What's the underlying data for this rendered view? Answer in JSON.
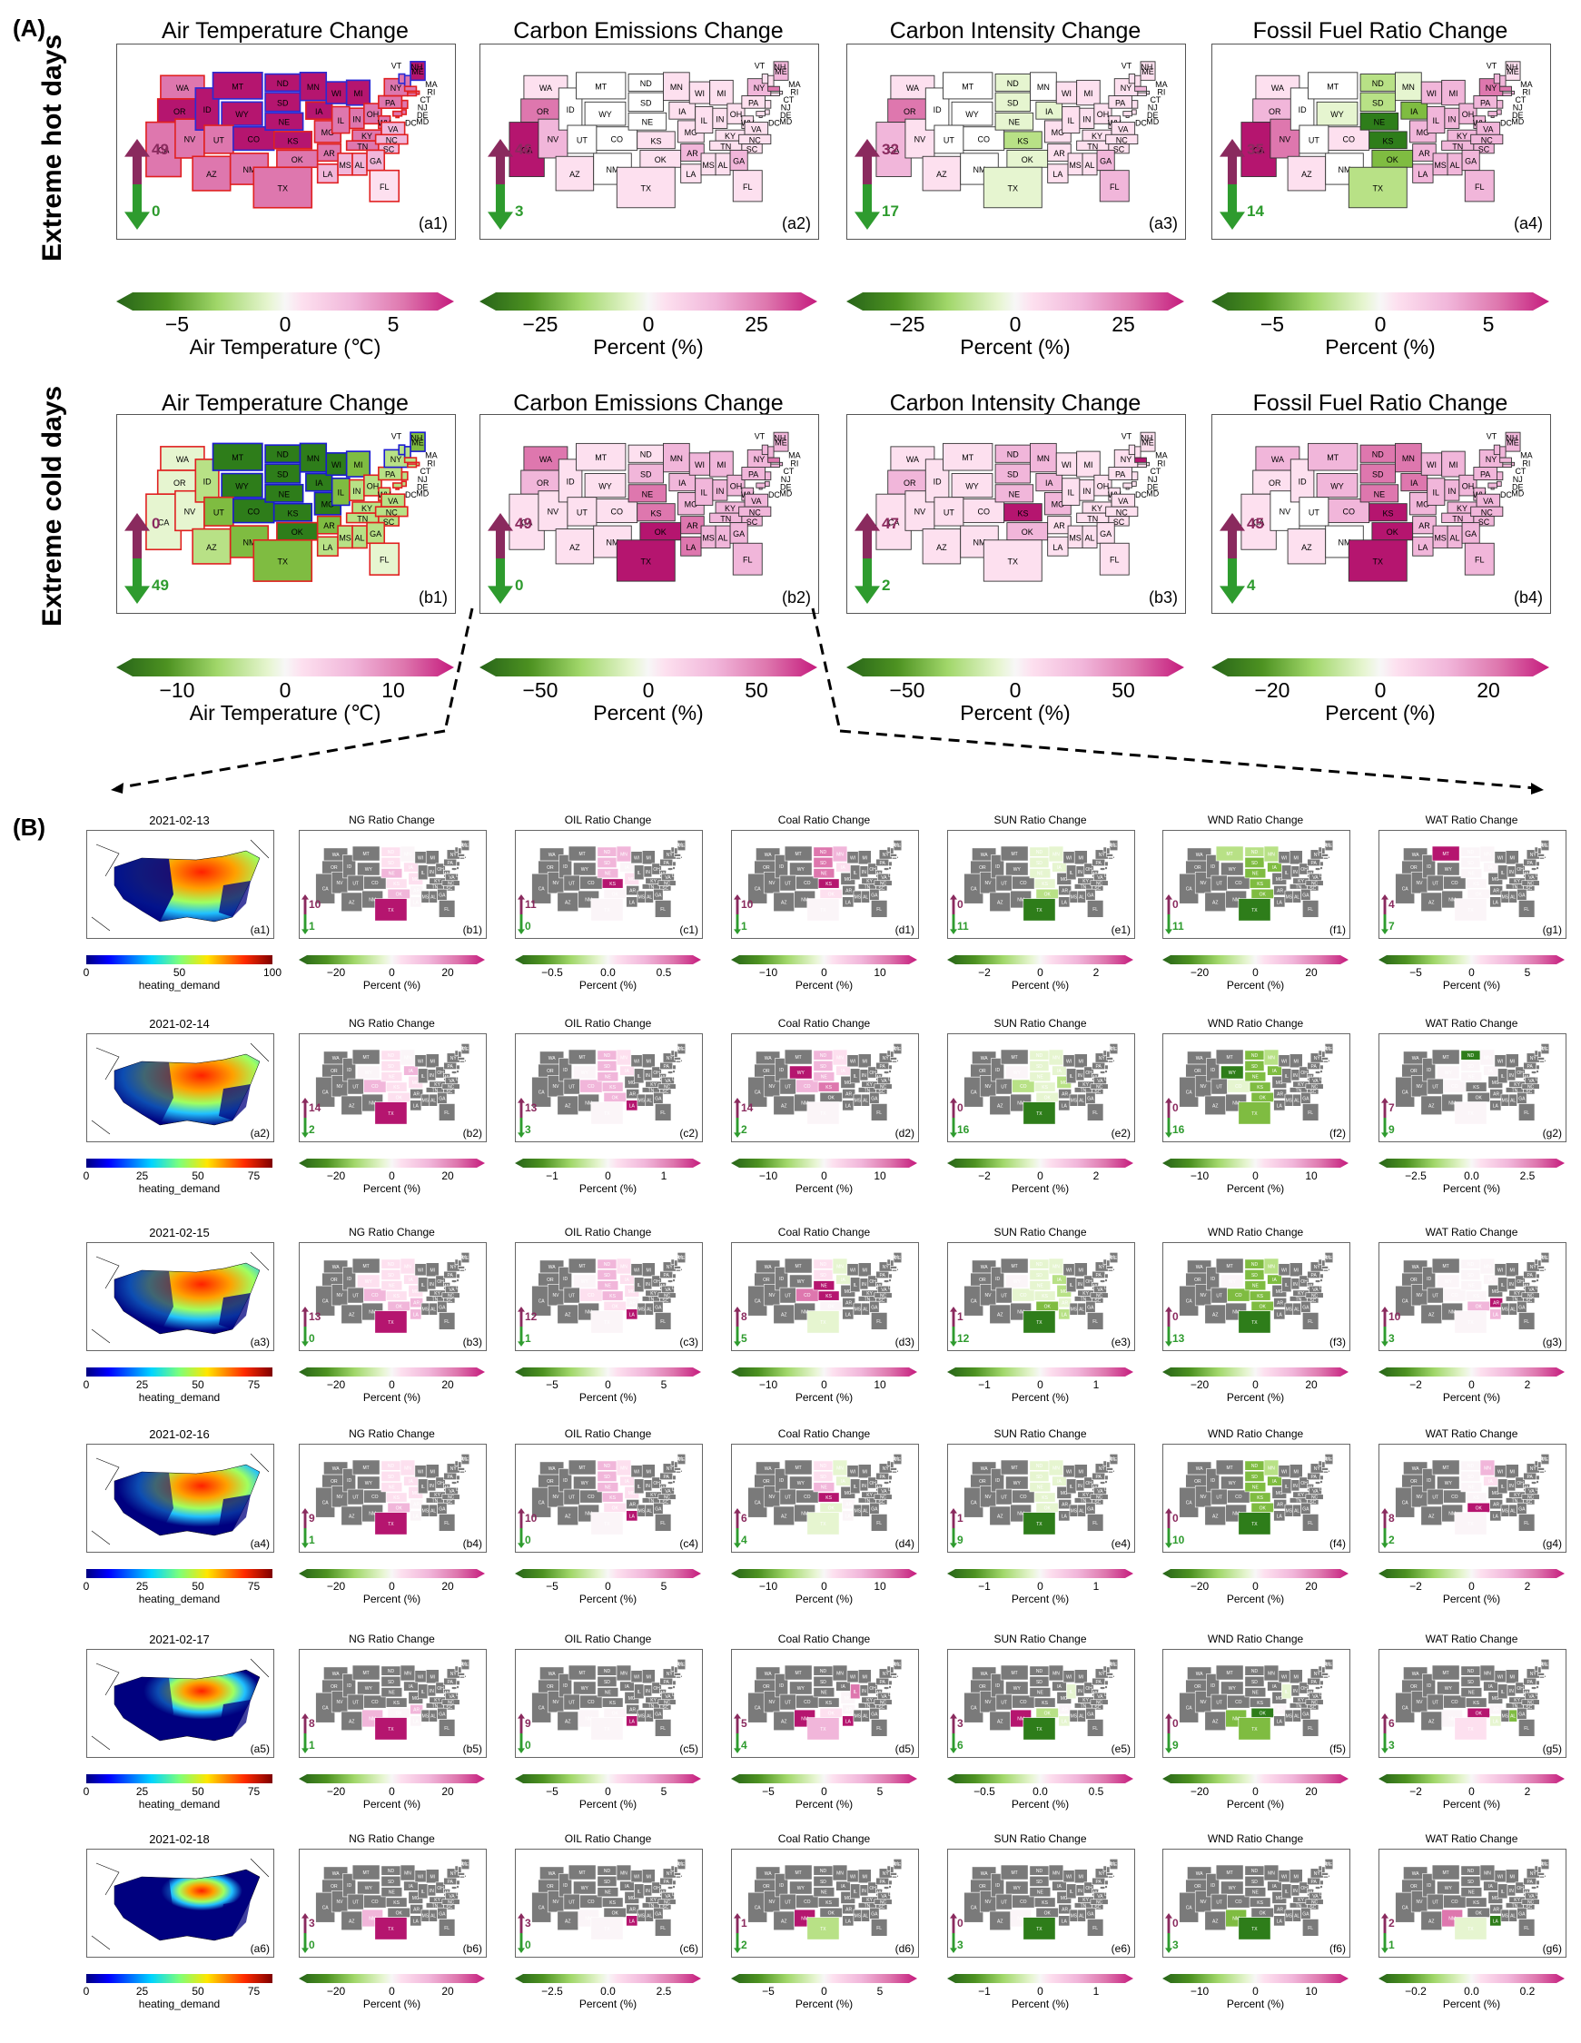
{
  "section_a": {
    "label": "(A)",
    "rows": [
      {
        "row_label": "Extreme hot days",
        "panels": [
          {
            "title": "Air Temperature Change",
            "sub": "(a1)",
            "up": "49",
            "down": "0",
            "cb_ticks": [
              "−5",
              "0",
              "5"
            ],
            "cb_label": "Air Temperature (℃)",
            "style": "air-hot"
          },
          {
            "title": "Carbon Emissions Change",
            "sub": "(a2)",
            "up": "46",
            "down": "3",
            "cb_ticks": [
              "−25",
              "0",
              "25"
            ],
            "cb_label": "Percent (%)",
            "style": "pink-light"
          },
          {
            "title": "Carbon Intensity Change",
            "sub": "(a3)",
            "up": "32",
            "down": "17",
            "cb_ticks": [
              "−25",
              "0",
              "25"
            ],
            "cb_label": "Percent (%)",
            "style": "mixed-a3"
          },
          {
            "title": "Fossil Fuel Ratio Change",
            "sub": "(a4)",
            "up": "35",
            "down": "14",
            "cb_ticks": [
              "−5",
              "0",
              "5"
            ],
            "cb_label": "Percent (%)",
            "style": "mixed-a4"
          }
        ]
      },
      {
        "row_label": "Extreme cold days",
        "panels": [
          {
            "title": "Air Temperature Change",
            "sub": "(b1)",
            "up": "0",
            "down": "49",
            "cb_ticks": [
              "−10",
              "0",
              "10"
            ],
            "cb_label": "Air Temperature (℃)",
            "style": "air-cold"
          },
          {
            "title": "Carbon Emissions Change",
            "sub": "(b2)",
            "up": "49",
            "down": "0",
            "cb_ticks": [
              "−50",
              "0",
              "50"
            ],
            "cb_label": "Percent (%)",
            "style": "pink-cold"
          },
          {
            "title": "Carbon Intensity Change",
            "sub": "(b3)",
            "up": "47",
            "down": "2",
            "cb_ticks": [
              "−50",
              "0",
              "50"
            ],
            "cb_label": "Percent (%)",
            "style": "pink-b3"
          },
          {
            "title": "Fossil Fuel Ratio Change",
            "sub": "(b4)",
            "up": "45",
            "down": "4",
            "cb_ticks": [
              "−20",
              "0",
              "20"
            ],
            "cb_label": "Percent (%)",
            "style": "pink-b4"
          }
        ]
      }
    ]
  },
  "state_labels": [
    "WA",
    "OR",
    "CA",
    "NV",
    "ID",
    "MT",
    "WY",
    "UT",
    "AZ",
    "CO",
    "NM",
    "ND",
    "SD",
    "NE",
    "KS",
    "OK",
    "TX",
    "MN",
    "IA",
    "MO",
    "AR",
    "LA",
    "WI",
    "IL",
    "MI",
    "IN",
    "KY",
    "TN",
    "MS",
    "AL",
    "OH",
    "WV",
    "VA",
    "NC",
    "SC",
    "GA",
    "FL",
    "PA",
    "NY",
    "ME",
    "NH",
    "VT",
    "MA",
    "RI",
    "CT",
    "NJ",
    "DE",
    "MD",
    "DC"
  ],
  "section_b": {
    "label": "(B)",
    "col_titles": [
      "NG Ratio Change",
      "OIL Ratio Change",
      "Coal Ratio Change",
      "SUN Ratio Change",
      "WND Ratio Change",
      "WAT Ratio Change"
    ],
    "cb_label": "Percent (%)",
    "heat_label": "heating_demand",
    "rows": [
      {
        "date": "2021-02-13",
        "a_sub": "(a1)",
        "heat_ticks": [
          "0",
          "50",
          "100"
        ],
        "cells": [
          {
            "sub": "(b1)",
            "up": "10",
            "down": "1",
            "ticks": [
              "−20",
              "0",
              "20"
            ]
          },
          {
            "sub": "(c1)",
            "up": "11",
            "down": "0",
            "ticks": [
              "−0.5",
              "0.0",
              "0.5"
            ]
          },
          {
            "sub": "(d1)",
            "up": "10",
            "down": "1",
            "ticks": [
              "−10",
              "0",
              "10"
            ]
          },
          {
            "sub": "(e1)",
            "up": "0",
            "down": "11",
            "ticks": [
              "−2",
              "0",
              "2"
            ]
          },
          {
            "sub": "(f1)",
            "up": "0",
            "down": "11",
            "ticks": [
              "−20",
              "0",
              "20"
            ]
          },
          {
            "sub": "(g1)",
            "up": "4",
            "down": "7",
            "ticks": [
              "−5",
              "0",
              "5"
            ]
          }
        ]
      },
      {
        "date": "2021-02-14",
        "a_sub": "(a2)",
        "heat_ticks": [
          "0",
          "25",
          "50",
          "75"
        ],
        "cells": [
          {
            "sub": "(b2)",
            "up": "14",
            "down": "2",
            "ticks": [
              "−20",
              "0",
              "20"
            ]
          },
          {
            "sub": "(c2)",
            "up": "13",
            "down": "3",
            "ticks": [
              "−1",
              "0",
              "1"
            ]
          },
          {
            "sub": "(d2)",
            "up": "14",
            "down": "2",
            "ticks": [
              "−10",
              "0",
              "10"
            ]
          },
          {
            "sub": "(e2)",
            "up": "0",
            "down": "16",
            "ticks": [
              "−2",
              "0",
              "2"
            ]
          },
          {
            "sub": "(f2)",
            "up": "0",
            "down": "16",
            "ticks": [
              "−10",
              "0",
              "10"
            ]
          },
          {
            "sub": "(g2)",
            "up": "7",
            "down": "9",
            "ticks": [
              "−2.5",
              "0.0",
              "2.5"
            ]
          }
        ]
      },
      {
        "date": "2021-02-15",
        "a_sub": "(a3)",
        "heat_ticks": [
          "0",
          "25",
          "50",
          "75"
        ],
        "cells": [
          {
            "sub": "(b3)",
            "up": "13",
            "down": "0",
            "ticks": [
              "−20",
              "0",
              "20"
            ]
          },
          {
            "sub": "(c3)",
            "up": "12",
            "down": "1",
            "ticks": [
              "−5",
              "0",
              "5"
            ]
          },
          {
            "sub": "(d3)",
            "up": "8",
            "down": "5",
            "ticks": [
              "−10",
              "0",
              "10"
            ]
          },
          {
            "sub": "(e3)",
            "up": "1",
            "down": "12",
            "ticks": [
              "−1",
              "0",
              "1"
            ]
          },
          {
            "sub": "(f3)",
            "up": "0",
            "down": "13",
            "ticks": [
              "−20",
              "0",
              "20"
            ]
          },
          {
            "sub": "(g3)",
            "up": "10",
            "down": "3",
            "ticks": [
              "−2",
              "0",
              "2"
            ]
          }
        ]
      },
      {
        "date": "2021-02-16",
        "a_sub": "(a4)",
        "heat_ticks": [
          "0",
          "25",
          "50",
          "75"
        ],
        "cells": [
          {
            "sub": "(b4)",
            "up": "9",
            "down": "1",
            "ticks": [
              "−20",
              "0",
              "20"
            ]
          },
          {
            "sub": "(c4)",
            "up": "10",
            "down": "0",
            "ticks": [
              "−5",
              "0",
              "5"
            ]
          },
          {
            "sub": "(d4)",
            "up": "6",
            "down": "4",
            "ticks": [
              "−10",
              "0",
              "10"
            ]
          },
          {
            "sub": "(e4)",
            "up": "1",
            "down": "9",
            "ticks": [
              "−1",
              "0",
              "1"
            ]
          },
          {
            "sub": "(f4)",
            "up": "0",
            "down": "10",
            "ticks": [
              "−20",
              "0",
              "20"
            ]
          },
          {
            "sub": "(g4)",
            "up": "8",
            "down": "2",
            "ticks": [
              "−2",
              "0",
              "2"
            ]
          }
        ]
      },
      {
        "date": "2021-02-17",
        "a_sub": "(a5)",
        "heat_ticks": [
          "0",
          "25",
          "50",
          "75"
        ],
        "cells": [
          {
            "sub": "(b5)",
            "up": "8",
            "down": "1",
            "ticks": [
              "−20",
              "0",
              "20"
            ]
          },
          {
            "sub": "(c5)",
            "up": "9",
            "down": "0",
            "ticks": [
              "−5",
              "0",
              "5"
            ]
          },
          {
            "sub": "(d5)",
            "up": "5",
            "down": "4",
            "ticks": [
              "−5",
              "0",
              "5"
            ]
          },
          {
            "sub": "(e5)",
            "up": "3",
            "down": "6",
            "ticks": [
              "−0.5",
              "0.0",
              "0.5"
            ]
          },
          {
            "sub": "(f5)",
            "up": "0",
            "down": "9",
            "ticks": [
              "−20",
              "0",
              "20"
            ]
          },
          {
            "sub": "(g5)",
            "up": "6",
            "down": "3",
            "ticks": [
              "−2",
              "0",
              "2"
            ]
          }
        ]
      },
      {
        "date": "2021-02-18",
        "a_sub": "(a6)",
        "heat_ticks": [
          "0",
          "25",
          "50",
          "75"
        ],
        "cells": [
          {
            "sub": "(b6)",
            "up": "3",
            "down": "0",
            "ticks": [
              "−20",
              "0",
              "20"
            ]
          },
          {
            "sub": "(c6)",
            "up": "3",
            "down": "0",
            "ticks": [
              "−2.5",
              "0.0",
              "2.5"
            ]
          },
          {
            "sub": "(d6)",
            "up": "1",
            "down": "2",
            "ticks": [
              "−5",
              "0",
              "5"
            ]
          },
          {
            "sub": "(e6)",
            "up": "0",
            "down": "3",
            "ticks": [
              "−1",
              "0",
              "1"
            ]
          },
          {
            "sub": "(f6)",
            "up": "0",
            "down": "3",
            "ticks": [
              "−10",
              "0",
              "10"
            ]
          },
          {
            "sub": "(g6)",
            "up": "2",
            "down": "1",
            "ticks": [
              "−0.2",
              "0.0",
              "0.2"
            ]
          }
        ]
      }
    ]
  },
  "colors": {
    "pink_dark": "#b5156f",
    "pink_mid": "#de77ae",
    "pink_light": "#f1b6da",
    "pink_pale": "#fde0ef",
    "green_dark": "#2e7d1a",
    "green_mid": "#7fbc41",
    "green_light": "#b8e186",
    "green_pale": "#e6f5d0",
    "gray": "#7a7a7a",
    "up_arrow": "#8a2a5e",
    "down_arrow": "#2e9b2e"
  }
}
